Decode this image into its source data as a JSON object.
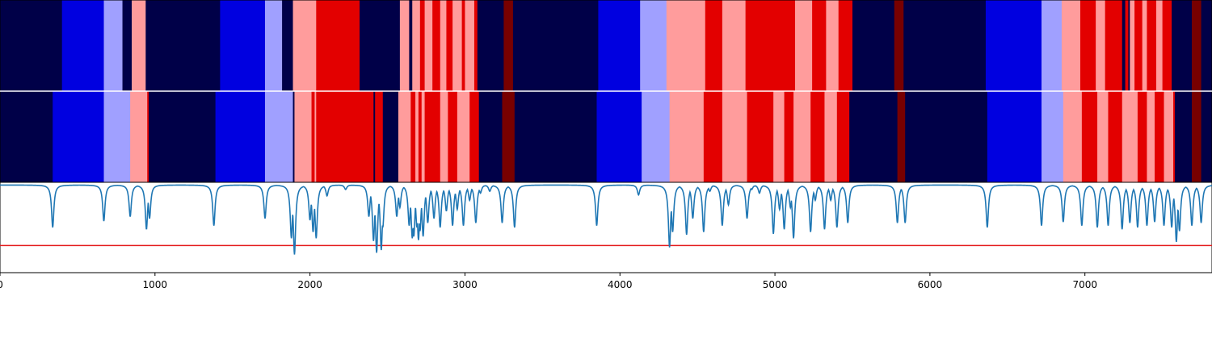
{
  "chart_data": {
    "type": "heatmap",
    "x_range": [
      0,
      7820
    ],
    "x_ticks": [
      0,
      1000,
      2000,
      3000,
      4000,
      5000,
      6000,
      7000
    ],
    "x_tick_labels": [
      "0",
      "1000",
      "2000",
      "3000",
      "4000",
      "5000",
      "6000",
      "7000"
    ],
    "palette": {
      "dark-blue": "#000048",
      "blue": "#0000e0",
      "light-blue": "#a0a0ff",
      "pink": "#ff9c9c",
      "red": "#e30000",
      "dark-red": "#780000"
    },
    "tracks": [
      {
        "segments": [
          {
            "start": 0,
            "end": 400,
            "state": "dark-blue"
          },
          {
            "start": 400,
            "end": 670,
            "state": "blue"
          },
          {
            "start": 670,
            "end": 790,
            "state": "light-blue"
          },
          {
            "start": 790,
            "end": 850,
            "state": "dark-blue"
          },
          {
            "start": 850,
            "end": 940,
            "state": "pink"
          },
          {
            "start": 940,
            "end": 1420,
            "state": "dark-blue"
          },
          {
            "start": 1420,
            "end": 1710,
            "state": "blue"
          },
          {
            "start": 1710,
            "end": 1820,
            "state": "light-blue"
          },
          {
            "start": 1820,
            "end": 1890,
            "state": "dark-blue"
          },
          {
            "start": 1890,
            "end": 2040,
            "state": "pink"
          },
          {
            "start": 2040,
            "end": 2320,
            "state": "red"
          },
          {
            "start": 2320,
            "end": 2580,
            "state": "dark-blue"
          },
          {
            "start": 2580,
            "end": 2640,
            "state": "pink"
          },
          {
            "start": 2640,
            "end": 2660,
            "state": "dark-blue"
          },
          {
            "start": 2660,
            "end": 2710,
            "state": "pink"
          },
          {
            "start": 2710,
            "end": 2740,
            "state": "red"
          },
          {
            "start": 2740,
            "end": 2790,
            "state": "pink"
          },
          {
            "start": 2790,
            "end": 2840,
            "state": "red"
          },
          {
            "start": 2840,
            "end": 2880,
            "state": "pink"
          },
          {
            "start": 2880,
            "end": 2920,
            "state": "red"
          },
          {
            "start": 2920,
            "end": 2980,
            "state": "pink"
          },
          {
            "start": 2980,
            "end": 3000,
            "state": "red"
          },
          {
            "start": 3000,
            "end": 3060,
            "state": "pink"
          },
          {
            "start": 3060,
            "end": 3080,
            "state": "red"
          },
          {
            "start": 3080,
            "end": 3250,
            "state": "dark-blue"
          },
          {
            "start": 3250,
            "end": 3310,
            "state": "dark-red"
          },
          {
            "start": 3310,
            "end": 3860,
            "state": "dark-blue"
          },
          {
            "start": 3860,
            "end": 4130,
            "state": "blue"
          },
          {
            "start": 4130,
            "end": 4300,
            "state": "light-blue"
          },
          {
            "start": 4300,
            "end": 4550,
            "state": "pink"
          },
          {
            "start": 4550,
            "end": 4660,
            "state": "red"
          },
          {
            "start": 4660,
            "end": 4810,
            "state": "pink"
          },
          {
            "start": 4810,
            "end": 5130,
            "state": "red"
          },
          {
            "start": 5130,
            "end": 5240,
            "state": "pink"
          },
          {
            "start": 5240,
            "end": 5330,
            "state": "red"
          },
          {
            "start": 5330,
            "end": 5410,
            "state": "pink"
          },
          {
            "start": 5410,
            "end": 5500,
            "state": "red"
          },
          {
            "start": 5500,
            "end": 5770,
            "state": "dark-blue"
          },
          {
            "start": 5770,
            "end": 5830,
            "state": "dark-red"
          },
          {
            "start": 5830,
            "end": 6360,
            "state": "dark-blue"
          },
          {
            "start": 6360,
            "end": 6720,
            "state": "blue"
          },
          {
            "start": 6720,
            "end": 6850,
            "state": "light-blue"
          },
          {
            "start": 6850,
            "end": 6970,
            "state": "pink"
          },
          {
            "start": 6970,
            "end": 7070,
            "state": "red"
          },
          {
            "start": 7070,
            "end": 7130,
            "state": "pink"
          },
          {
            "start": 7130,
            "end": 7240,
            "state": "red"
          },
          {
            "start": 7240,
            "end": 7260,
            "state": "dark-blue"
          },
          {
            "start": 7260,
            "end": 7280,
            "state": "red"
          },
          {
            "start": 7280,
            "end": 7290,
            "state": "dark-blue"
          },
          {
            "start": 7290,
            "end": 7320,
            "state": "pink"
          },
          {
            "start": 7320,
            "end": 7370,
            "state": "red"
          },
          {
            "start": 7370,
            "end": 7400,
            "state": "pink"
          },
          {
            "start": 7400,
            "end": 7460,
            "state": "red"
          },
          {
            "start": 7460,
            "end": 7500,
            "state": "pink"
          },
          {
            "start": 7500,
            "end": 7560,
            "state": "red"
          },
          {
            "start": 7560,
            "end": 7690,
            "state": "dark-blue"
          },
          {
            "start": 7690,
            "end": 7750,
            "state": "dark-red"
          },
          {
            "start": 7750,
            "end": 7820,
            "state": "dark-blue"
          }
        ]
      },
      {
        "segments": [
          {
            "start": 0,
            "end": 340,
            "state": "dark-blue"
          },
          {
            "start": 340,
            "end": 670,
            "state": "blue"
          },
          {
            "start": 670,
            "end": 840,
            "state": "light-blue"
          },
          {
            "start": 840,
            "end": 950,
            "state": "pink"
          },
          {
            "start": 950,
            "end": 960,
            "state": "red"
          },
          {
            "start": 960,
            "end": 1390,
            "state": "dark-blue"
          },
          {
            "start": 1390,
            "end": 1710,
            "state": "blue"
          },
          {
            "start": 1710,
            "end": 1890,
            "state": "light-blue"
          },
          {
            "start": 1890,
            "end": 1900,
            "state": "dark-blue"
          },
          {
            "start": 1900,
            "end": 2010,
            "state": "pink"
          },
          {
            "start": 2010,
            "end": 2030,
            "state": "red"
          },
          {
            "start": 2030,
            "end": 2040,
            "state": "pink"
          },
          {
            "start": 2040,
            "end": 2410,
            "state": "red"
          },
          {
            "start": 2410,
            "end": 2420,
            "state": "dark-blue"
          },
          {
            "start": 2420,
            "end": 2470,
            "state": "red"
          },
          {
            "start": 2470,
            "end": 2570,
            "state": "dark-blue"
          },
          {
            "start": 2570,
            "end": 2650,
            "state": "pink"
          },
          {
            "start": 2650,
            "end": 2680,
            "state": "red"
          },
          {
            "start": 2680,
            "end": 2700,
            "state": "pink"
          },
          {
            "start": 2700,
            "end": 2720,
            "state": "red"
          },
          {
            "start": 2720,
            "end": 2740,
            "state": "pink"
          },
          {
            "start": 2740,
            "end": 2840,
            "state": "red"
          },
          {
            "start": 2840,
            "end": 2890,
            "state": "pink"
          },
          {
            "start": 2890,
            "end": 2950,
            "state": "red"
          },
          {
            "start": 2950,
            "end": 3030,
            "state": "pink"
          },
          {
            "start": 3030,
            "end": 3090,
            "state": "red"
          },
          {
            "start": 3090,
            "end": 3240,
            "state": "dark-blue"
          },
          {
            "start": 3240,
            "end": 3320,
            "state": "dark-red"
          },
          {
            "start": 3320,
            "end": 3850,
            "state": "dark-blue"
          },
          {
            "start": 3850,
            "end": 4140,
            "state": "blue"
          },
          {
            "start": 4140,
            "end": 4320,
            "state": "light-blue"
          },
          {
            "start": 4320,
            "end": 4540,
            "state": "pink"
          },
          {
            "start": 4540,
            "end": 4660,
            "state": "red"
          },
          {
            "start": 4660,
            "end": 4820,
            "state": "pink"
          },
          {
            "start": 4820,
            "end": 4990,
            "state": "red"
          },
          {
            "start": 4990,
            "end": 5060,
            "state": "pink"
          },
          {
            "start": 5060,
            "end": 5120,
            "state": "red"
          },
          {
            "start": 5120,
            "end": 5230,
            "state": "pink"
          },
          {
            "start": 5230,
            "end": 5320,
            "state": "red"
          },
          {
            "start": 5320,
            "end": 5400,
            "state": "pink"
          },
          {
            "start": 5400,
            "end": 5480,
            "state": "red"
          },
          {
            "start": 5480,
            "end": 5790,
            "state": "dark-blue"
          },
          {
            "start": 5790,
            "end": 5840,
            "state": "dark-red"
          },
          {
            "start": 5840,
            "end": 6370,
            "state": "dark-blue"
          },
          {
            "start": 6370,
            "end": 6720,
            "state": "blue"
          },
          {
            "start": 6720,
            "end": 6860,
            "state": "light-blue"
          },
          {
            "start": 6860,
            "end": 6980,
            "state": "pink"
          },
          {
            "start": 6980,
            "end": 7080,
            "state": "red"
          },
          {
            "start": 7080,
            "end": 7150,
            "state": "pink"
          },
          {
            "start": 7150,
            "end": 7240,
            "state": "red"
          },
          {
            "start": 7240,
            "end": 7340,
            "state": "pink"
          },
          {
            "start": 7340,
            "end": 7400,
            "state": "red"
          },
          {
            "start": 7400,
            "end": 7450,
            "state": "pink"
          },
          {
            "start": 7450,
            "end": 7510,
            "state": "red"
          },
          {
            "start": 7510,
            "end": 7570,
            "state": "pink"
          },
          {
            "start": 7570,
            "end": 7580,
            "state": "red"
          },
          {
            "start": 7580,
            "end": 7690,
            "state": "dark-blue"
          },
          {
            "start": 7690,
            "end": 7750,
            "state": "dark-red"
          },
          {
            "start": 7750,
            "end": 7820,
            "state": "dark-blue"
          }
        ]
      }
    ],
    "line": {
      "color": "#1f77b4",
      "baseline": 0.97,
      "y_range": [
        0,
        1
      ],
      "dips": [
        [
          340,
          0.5
        ],
        [
          670,
          0.57
        ],
        [
          840,
          0.62
        ],
        [
          945,
          0.48
        ],
        [
          965,
          0.6
        ],
        [
          1380,
          0.52
        ],
        [
          1710,
          0.6
        ],
        [
          1880,
          0.38
        ],
        [
          1900,
          0.2
        ],
        [
          2000,
          0.58
        ],
        [
          2020,
          0.45
        ],
        [
          2040,
          0.38
        ],
        [
          2110,
          0.85
        ],
        [
          2230,
          0.92
        ],
        [
          2380,
          0.62
        ],
        [
          2410,
          0.35
        ],
        [
          2430,
          0.22
        ],
        [
          2460,
          0.25
        ],
        [
          2470,
          0.5
        ],
        [
          2560,
          0.62
        ],
        [
          2580,
          0.72
        ],
        [
          2640,
          0.52
        ],
        [
          2660,
          0.38
        ],
        [
          2670,
          0.4
        ],
        [
          2690,
          0.5
        ],
        [
          2700,
          0.36
        ],
        [
          2710,
          0.46
        ],
        [
          2730,
          0.4
        ],
        [
          2760,
          0.55
        ],
        [
          2800,
          0.6
        ],
        [
          2840,
          0.5
        ],
        [
          2880,
          0.68
        ],
        [
          2920,
          0.52
        ],
        [
          2950,
          0.7
        ],
        [
          2990,
          0.52
        ],
        [
          3030,
          0.8
        ],
        [
          3070,
          0.55
        ],
        [
          3100,
          0.88
        ],
        [
          3160,
          0.9
        ],
        [
          3240,
          0.55
        ],
        [
          3320,
          0.5
        ],
        [
          3850,
          0.52
        ],
        [
          4120,
          0.86
        ],
        [
          4320,
          0.28
        ],
        [
          4340,
          0.45
        ],
        [
          4430,
          0.42
        ],
        [
          4470,
          0.6
        ],
        [
          4540,
          0.45
        ],
        [
          4580,
          0.9
        ],
        [
          4660,
          0.52
        ],
        [
          4700,
          0.75
        ],
        [
          4820,
          0.6
        ],
        [
          4850,
          0.92
        ],
        [
          4900,
          0.88
        ],
        [
          4990,
          0.43
        ],
        [
          5030,
          0.7
        ],
        [
          5060,
          0.48
        ],
        [
          5100,
          0.72
        ],
        [
          5120,
          0.38
        ],
        [
          5230,
          0.45
        ],
        [
          5260,
          0.8
        ],
        [
          5320,
          0.48
        ],
        [
          5360,
          0.8
        ],
        [
          5400,
          0.5
        ],
        [
          5470,
          0.55
        ],
        [
          5790,
          0.55
        ],
        [
          5840,
          0.55
        ],
        [
          6370,
          0.5
        ],
        [
          6720,
          0.52
        ],
        [
          6860,
          0.56
        ],
        [
          6980,
          0.52
        ],
        [
          7080,
          0.5
        ],
        [
          7150,
          0.52
        ],
        [
          7240,
          0.48
        ],
        [
          7290,
          0.55
        ],
        [
          7340,
          0.5
        ],
        [
          7400,
          0.52
        ],
        [
          7450,
          0.56
        ],
        [
          7510,
          0.52
        ],
        [
          7560,
          0.5
        ],
        [
          7590,
          0.34
        ],
        [
          7610,
          0.46
        ],
        [
          7690,
          0.52
        ],
        [
          7750,
          0.55
        ]
      ]
    },
    "threshold": {
      "y": 0.3,
      "color": "#e41a1c"
    }
  }
}
